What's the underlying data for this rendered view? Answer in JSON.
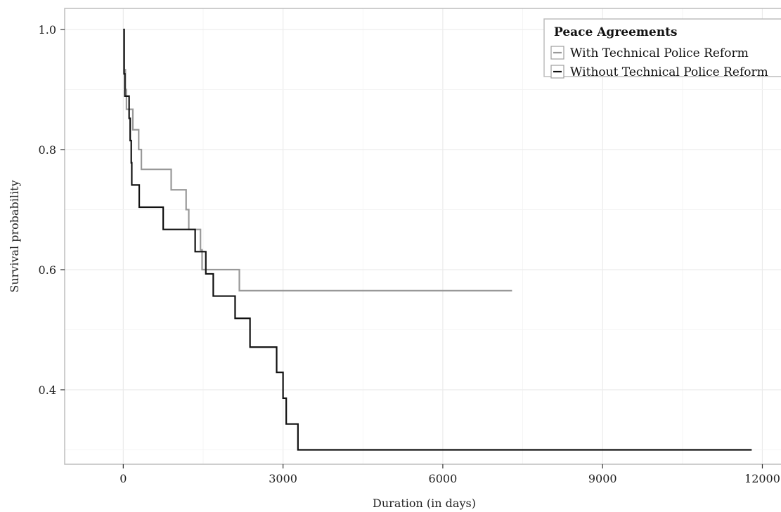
{
  "chart_data": {
    "type": "line",
    "step": true,
    "xlabel": "Duration (in days)",
    "ylabel": "Survival probability",
    "xlim": [
      -1100,
      12350
    ],
    "ylim": [
      0.276,
      1.035
    ],
    "xticks": [
      0,
      3000,
      6000,
      9000,
      12000
    ],
    "xtick_labels": [
      "0",
      "3000",
      "6000",
      "9000",
      "12000"
    ],
    "yticks": [
      0.4,
      0.6,
      0.8,
      1.0
    ],
    "ytick_labels": [
      "0.4",
      "0.6",
      "0.8",
      "1.0"
    ],
    "grid": true,
    "legend": {
      "title": "Peace Agreements",
      "position": "top-right"
    },
    "series": [
      {
        "name": "With Technical Police Reform",
        "color": "#999999",
        "points": [
          [
            0,
            1.0
          ],
          [
            20,
            0.933
          ],
          [
            40,
            0.9
          ],
          [
            60,
            0.867
          ],
          [
            180,
            0.833
          ],
          [
            290,
            0.8
          ],
          [
            340,
            0.767
          ],
          [
            900,
            0.733
          ],
          [
            1180,
            0.7
          ],
          [
            1230,
            0.667
          ],
          [
            1450,
            0.633
          ],
          [
            1480,
            0.6
          ],
          [
            2180,
            0.565
          ],
          [
            7300,
            0.565
          ]
        ]
      },
      {
        "name": "Without Technical Police Reform",
        "color": "#111111",
        "points": [
          [
            0,
            1.0
          ],
          [
            15,
            0.926
          ],
          [
            30,
            0.889
          ],
          [
            110,
            0.852
          ],
          [
            130,
            0.815
          ],
          [
            150,
            0.778
          ],
          [
            160,
            0.741
          ],
          [
            300,
            0.704
          ],
          [
            750,
            0.667
          ],
          [
            1350,
            0.63
          ],
          [
            1550,
            0.593
          ],
          [
            1690,
            0.556
          ],
          [
            2100,
            0.519
          ],
          [
            2380,
            0.471
          ],
          [
            2880,
            0.429
          ],
          [
            3000,
            0.386
          ],
          [
            3060,
            0.343
          ],
          [
            3280,
            0.3
          ],
          [
            11800,
            0.3
          ]
        ]
      }
    ]
  }
}
